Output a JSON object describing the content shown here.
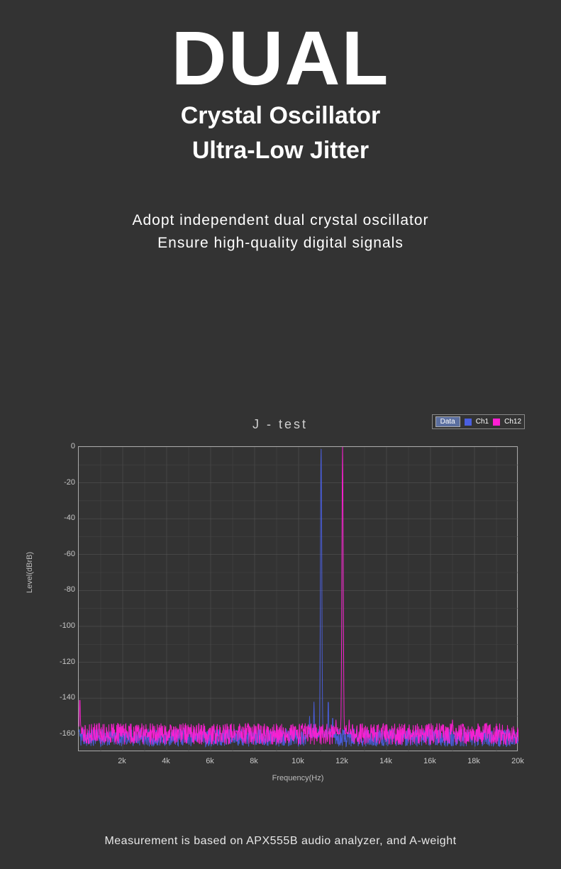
{
  "hero": {
    "big": "DUAL",
    "line1": "Crystal Oscillator",
    "line2": "Ultra-Low Jitter"
  },
  "body": {
    "line1": "Adopt independent dual crystal oscillator",
    "line2": "Ensure high-quality digital signals"
  },
  "chart": {
    "type": "line-spectrum",
    "title": "J - test",
    "xlabel": "Frequency(Hz)",
    "ylabel": "Level(dBrB)",
    "xlim": [
      0,
      20000
    ],
    "ylim": [
      -170,
      0
    ],
    "xticks": [
      2000,
      4000,
      6000,
      8000,
      10000,
      12000,
      14000,
      16000,
      18000,
      20000
    ],
    "xtick_labels": [
      "2k",
      "4k",
      "6k",
      "8k",
      "10k",
      "12k",
      "14k",
      "16k",
      "18k",
      "20k"
    ],
    "yticks": [
      0,
      -20,
      -40,
      -60,
      -80,
      -100,
      -120,
      -140,
      -160
    ],
    "ytick_labels": [
      "0",
      "-20",
      "-40",
      "-60",
      "-80",
      "-100",
      "-120",
      "-140",
      "-160"
    ],
    "grid_major_x_step": 1000,
    "grid_major_y_step": 10,
    "grid_color": "#5a5a5a",
    "grid_minor_color": "#474747",
    "border_color": "#a8a8a8",
    "background_color": "#333333",
    "tick_fontsize": 11,
    "label_fontsize": 11,
    "title_fontsize": 18,
    "legend": {
      "data_label": "Data",
      "items": [
        {
          "label": "Ch1",
          "color": "#4a5fe0"
        },
        {
          "label": "Ch12",
          "color": "#ff1fd4"
        }
      ]
    },
    "series": [
      {
        "name": "Ch1",
        "color": "#4a5fe0",
        "noise_floor_db": -162,
        "noise_amplitude_db": 5,
        "line_width": 1,
        "peaks": [
          {
            "freq": 11025,
            "level": 0,
            "width_hz": 60
          },
          {
            "freq": 10700,
            "level": -142,
            "width_hz": 30
          },
          {
            "freq": 11350,
            "level": -140,
            "width_hz": 30
          },
          {
            "freq": 10500,
            "level": -150,
            "width_hz": 30
          },
          {
            "freq": 11550,
            "level": -150,
            "width_hz": 30
          }
        ]
      },
      {
        "name": "Ch12",
        "color": "#ff1fd4",
        "noise_floor_db": -160,
        "noise_amplitude_db": 6,
        "line_width": 1,
        "peaks": [
          {
            "freq": 12000,
            "level": 0,
            "width_hz": 60
          },
          {
            "freq": 50,
            "level": -140,
            "width_hz": 40
          },
          {
            "freq": 17000,
            "level": -152,
            "width_hz": 30
          },
          {
            "freq": 11700,
            "level": -152,
            "width_hz": 30
          },
          {
            "freq": 12300,
            "level": -152,
            "width_hz": 30
          }
        ]
      }
    ]
  },
  "footnote": "Measurement is based on APX555B audio analyzer, and A-weight",
  "colors": {
    "page_bg": "#333333",
    "text": "#ffffff",
    "muted": "#c8c8c8"
  }
}
